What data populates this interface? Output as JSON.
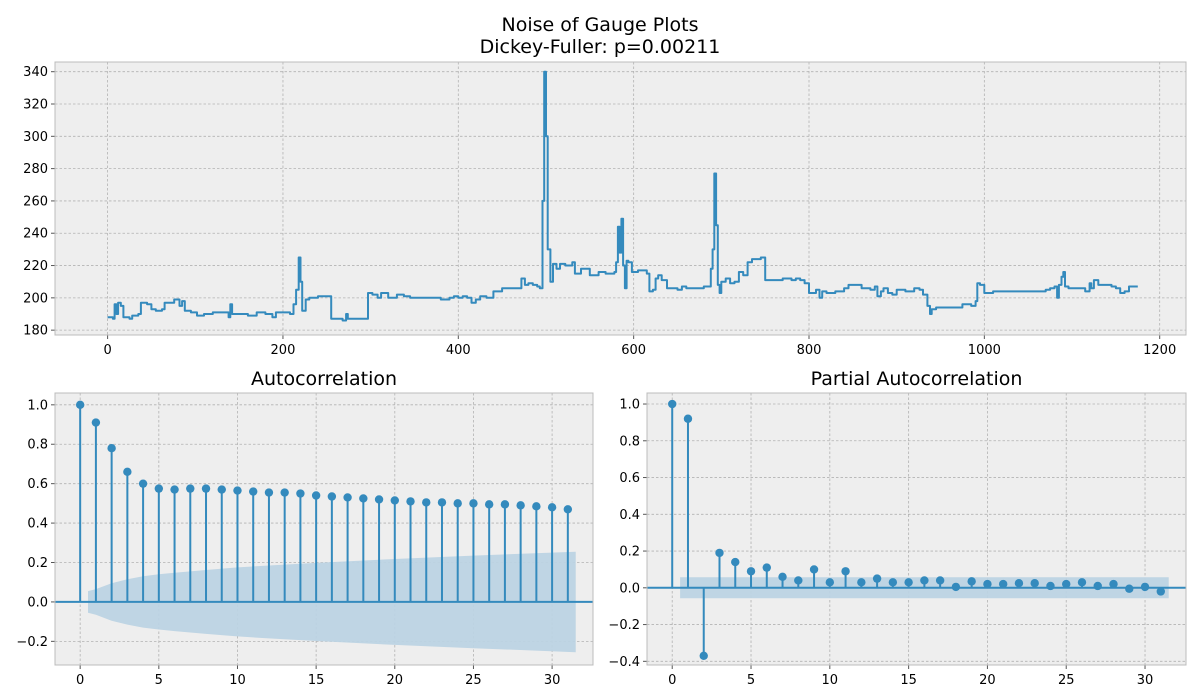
{
  "figure": {
    "title_line1": "Noise of Gauge Plots",
    "title_line2": "Dickey-Fuller: p=0.00211"
  },
  "colors": {
    "series": "#348abd",
    "confidence_band": "#bcd3e3",
    "panel_bg": "#eeeeee",
    "grid": "#b2b2b2",
    "frame": "#bcbcbc"
  },
  "chart_data": [
    {
      "type": "line",
      "title": "",
      "xlabel": "",
      "ylabel": "",
      "xlim": [
        -60,
        1230
      ],
      "ylim": [
        177,
        346
      ],
      "xticks": [
        0,
        200,
        400,
        600,
        800,
        1000,
        1200
      ],
      "yticks": [
        180,
        200,
        220,
        240,
        260,
        280,
        300,
        320,
        340
      ],
      "grid": true,
      "series": [
        {
          "points": [
            [
              0,
              188
            ],
            [
              6,
              187
            ],
            [
              8,
              196
            ],
            [
              10,
              190
            ],
            [
              12,
              197
            ],
            [
              15,
              195
            ],
            [
              18,
              188
            ],
            [
              25,
              187
            ],
            [
              28,
              189
            ],
            [
              35,
              190
            ],
            [
              38,
              197
            ],
            [
              45,
              196
            ],
            [
              50,
              193
            ],
            [
              55,
              192
            ],
            [
              62,
              193
            ],
            [
              65,
              197
            ],
            [
              72,
              197
            ],
            [
              76,
              199
            ],
            [
              82,
              195
            ],
            [
              85,
              198
            ],
            [
              88,
              192
            ],
            [
              95,
              191
            ],
            [
              102,
              189
            ],
            [
              110,
              190
            ],
            [
              120,
              191
            ],
            [
              130,
              191
            ],
            [
              138,
              188
            ],
            [
              140,
              196
            ],
            [
              142,
              190
            ],
            [
              150,
              190
            ],
            [
              160,
              189
            ],
            [
              170,
              191
            ],
            [
              180,
              190
            ],
            [
              188,
              188
            ],
            [
              192,
              191
            ],
            [
              200,
              191
            ],
            [
              208,
              190
            ],
            [
              212,
              196
            ],
            [
              215,
              205
            ],
            [
              218,
              225
            ],
            [
              220,
              210
            ],
            [
              222,
              192
            ],
            [
              226,
              199
            ],
            [
              230,
              200
            ],
            [
              240,
              201
            ],
            [
              250,
              201
            ],
            [
              255,
              187
            ],
            [
              260,
              187
            ],
            [
              268,
              186
            ],
            [
              272,
              190
            ],
            [
              274,
              187
            ],
            [
              285,
              187
            ],
            [
              295,
              187
            ],
            [
              297,
              203
            ],
            [
              302,
              202
            ],
            [
              308,
              200
            ],
            [
              312,
              203
            ],
            [
              320,
              200
            ],
            [
              330,
              202
            ],
            [
              338,
              201
            ],
            [
              345,
              200
            ],
            [
              360,
              200
            ],
            [
              370,
              200
            ],
            [
              380,
              199
            ],
            [
              390,
              200
            ],
            [
              395,
              201
            ],
            [
              400,
              200
            ],
            [
              405,
              201
            ],
            [
              410,
              200
            ],
            [
              415,
              197
            ],
            [
              420,
              199
            ],
            [
              425,
              201
            ],
            [
              432,
              200
            ],
            [
              440,
              204
            ],
            [
              450,
              206
            ],
            [
              460,
              206
            ],
            [
              470,
              206
            ],
            [
              472,
              212
            ],
            [
              476,
              208
            ],
            [
              480,
              209
            ],
            [
              485,
              208
            ],
            [
              490,
              207
            ],
            [
              493,
              206
            ],
            [
              496,
              260
            ],
            [
              498,
              340
            ],
            [
              500,
              300
            ],
            [
              502,
              230
            ],
            [
              505,
              210
            ],
            [
              508,
              221
            ],
            [
              512,
              218
            ],
            [
              516,
              221
            ],
            [
              522,
              220
            ],
            [
              528,
              220
            ],
            [
              530,
              222
            ],
            [
              533,
              215
            ],
            [
              540,
              218
            ],
            [
              550,
              214
            ],
            [
              560,
              216
            ],
            [
              568,
              215
            ],
            [
              575,
              215
            ],
            [
              578,
              216
            ],
            [
              580,
              222
            ],
            [
              582,
              244
            ],
            [
              584,
              228
            ],
            [
              586,
              249
            ],
            [
              588,
              220
            ],
            [
              590,
              206
            ],
            [
              592,
              223
            ],
            [
              594,
              222
            ],
            [
              598,
              216
            ],
            [
              605,
              217
            ],
            [
              610,
              217
            ],
            [
              615,
              215
            ],
            [
              618,
              204
            ],
            [
              622,
              205
            ],
            [
              625,
              212
            ],
            [
              628,
              214
            ],
            [
              632,
              211
            ],
            [
              638,
              206
            ],
            [
              645,
              206
            ],
            [
              650,
              205
            ],
            [
              655,
              207
            ],
            [
              660,
              206
            ],
            [
              670,
              206
            ],
            [
              680,
              207
            ],
            [
              686,
              207
            ],
            [
              688,
              218
            ],
            [
              690,
              230
            ],
            [
              692,
              277
            ],
            [
              694,
              245
            ],
            [
              696,
              208
            ],
            [
              698,
              203
            ],
            [
              700,
              210
            ],
            [
              705,
              212
            ],
            [
              710,
              209
            ],
            [
              715,
              210
            ],
            [
              720,
              216
            ],
            [
              725,
              214
            ],
            [
              730,
              222
            ],
            [
              735,
              224
            ],
            [
              740,
              224
            ],
            [
              745,
              225
            ],
            [
              750,
              211
            ],
            [
              760,
              211
            ],
            [
              770,
              212
            ],
            [
              780,
              211
            ],
            [
              785,
              212
            ],
            [
              790,
              211
            ],
            [
              795,
              209
            ],
            [
              800,
              203
            ],
            [
              805,
              203
            ],
            [
              808,
              205
            ],
            [
              812,
              200
            ],
            [
              815,
              204
            ],
            [
              820,
              203
            ],
            [
              830,
              204
            ],
            [
              840,
              206
            ],
            [
              845,
              208
            ],
            [
              855,
              208
            ],
            [
              860,
              206
            ],
            [
              865,
              206
            ],
            [
              870,
              205
            ],
            [
              875,
              207
            ],
            [
              878,
              201
            ],
            [
              882,
              204
            ],
            [
              885,
              206
            ],
            [
              890,
              203
            ],
            [
              895,
              202
            ],
            [
              900,
              205
            ],
            [
              910,
              204
            ],
            [
              920,
              206
            ],
            [
              926,
              205
            ],
            [
              930,
              202
            ],
            [
              935,
              195
            ],
            [
              938,
              190
            ],
            [
              940,
              193
            ],
            [
              945,
              194
            ],
            [
              955,
              194
            ],
            [
              965,
              194
            ],
            [
              975,
              196
            ],
            [
              985,
              195
            ],
            [
              990,
              198
            ],
            [
              992,
              209
            ],
            [
              995,
              208
            ],
            [
              1000,
              203
            ],
            [
              1010,
              204
            ],
            [
              1020,
              204
            ],
            [
              1030,
              204
            ],
            [
              1040,
              204
            ],
            [
              1050,
              204
            ],
            [
              1060,
              204
            ],
            [
              1070,
              205
            ],
            [
              1075,
              206
            ],
            [
              1080,
              207
            ],
            [
              1083,
              200
            ],
            [
              1085,
              208
            ],
            [
              1088,
              213
            ],
            [
              1090,
              216
            ],
            [
              1092,
              207
            ],
            [
              1096,
              206
            ],
            [
              1105,
              206
            ],
            [
              1115,
              204
            ],
            [
              1120,
              209
            ],
            [
              1122,
              206
            ],
            [
              1125,
              211
            ],
            [
              1130,
              208
            ],
            [
              1138,
              208
            ],
            [
              1145,
              207
            ],
            [
              1150,
              206
            ],
            [
              1155,
              203
            ],
            [
              1160,
              204
            ],
            [
              1165,
              207
            ],
            [
              1175,
              207
            ]
          ]
        }
      ]
    },
    {
      "type": "bar",
      "title": "Autocorrelation",
      "xlabel": "",
      "ylabel": "",
      "xlim": [
        -1.6,
        32.6
      ],
      "ylim": [
        -0.32,
        1.06
      ],
      "xticks": [
        0,
        5,
        10,
        15,
        20,
        25,
        30
      ],
      "yticks": [
        -0.2,
        0.0,
        0.2,
        0.4,
        0.6,
        0.8,
        1.0
      ],
      "grid": true,
      "lags": [
        0,
        1,
        2,
        3,
        4,
        5,
        6,
        7,
        8,
        9,
        10,
        11,
        12,
        13,
        14,
        15,
        16,
        17,
        18,
        19,
        20,
        21,
        22,
        23,
        24,
        25,
        26,
        27,
        28,
        29,
        30,
        31
      ],
      "values": [
        1.0,
        0.91,
        0.78,
        0.66,
        0.6,
        0.575,
        0.57,
        0.575,
        0.575,
        0.57,
        0.565,
        0.56,
        0.555,
        0.555,
        0.55,
        0.54,
        0.535,
        0.53,
        0.525,
        0.52,
        0.515,
        0.51,
        0.505,
        0.505,
        0.5,
        0.5,
        0.495,
        0.495,
        0.49,
        0.485,
        0.48,
        0.47
      ],
      "confidence_band": {
        "lags": [
          0.5,
          1,
          2,
          3,
          4,
          5,
          6,
          7,
          8,
          10,
          12,
          15,
          20,
          25,
          31.5
        ],
        "upper": [
          0.055,
          0.065,
          0.095,
          0.115,
          0.13,
          0.14,
          0.148,
          0.155,
          0.162,
          0.175,
          0.185,
          0.198,
          0.218,
          0.235,
          0.255
        ]
      }
    },
    {
      "type": "bar",
      "title": "Partial Autocorrelation",
      "xlabel": "",
      "ylabel": "",
      "xlim": [
        -1.6,
        32.6
      ],
      "ylim": [
        -0.42,
        1.06
      ],
      "xticks": [
        0,
        5,
        10,
        15,
        20,
        25,
        30
      ],
      "yticks": [
        -0.4,
        -0.2,
        0.0,
        0.2,
        0.4,
        0.6,
        0.8,
        1.0
      ],
      "grid": true,
      "lags": [
        0,
        1,
        2,
        3,
        4,
        5,
        6,
        7,
        8,
        9,
        10,
        11,
        12,
        13,
        14,
        15,
        16,
        17,
        18,
        19,
        20,
        21,
        22,
        23,
        24,
        25,
        26,
        27,
        28,
        29,
        30,
        31
      ],
      "values": [
        1.0,
        0.92,
        -0.37,
        0.19,
        0.14,
        0.09,
        0.11,
        0.06,
        0.04,
        0.1,
        0.03,
        0.09,
        0.03,
        0.05,
        0.03,
        0.03,
        0.04,
        0.04,
        0.005,
        0.035,
        0.02,
        0.02,
        0.025,
        0.025,
        0.01,
        0.02,
        0.03,
        0.01,
        0.02,
        -0.005,
        0.005,
        -0.02
      ],
      "confidence_band": {
        "lags": [
          0.5,
          31.5
        ],
        "upper": [
          0.057,
          0.057
        ]
      }
    }
  ]
}
